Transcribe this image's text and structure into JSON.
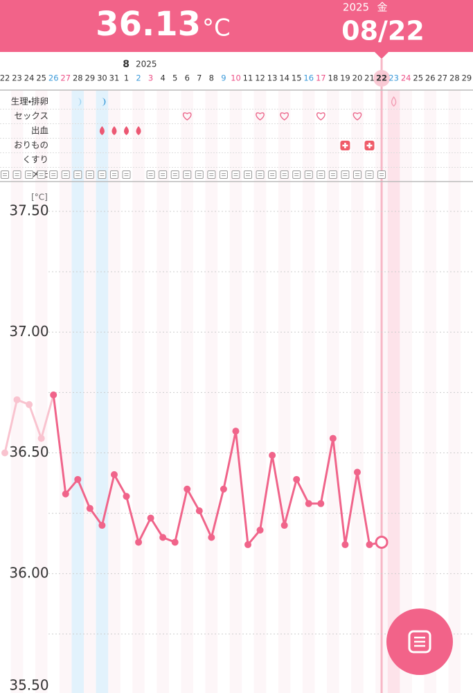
{
  "header": {
    "temperature": "36.13",
    "unit": "°C",
    "year": "2025",
    "weekday": "金",
    "date": "08/22"
  },
  "calendar": {
    "month": "8",
    "year": "2025",
    "days": [
      "22",
      "23",
      "24",
      "25",
      "26",
      "27",
      "28",
      "29",
      "30",
      "31",
      "1",
      "2",
      "3",
      "4",
      "5",
      "6",
      "7",
      "8",
      "9",
      "10",
      "11",
      "12",
      "13",
      "14",
      "15",
      "16",
      "17",
      "18",
      "19",
      "20",
      "21",
      "22",
      "23",
      "24",
      "25",
      "26",
      "27",
      "28",
      "29"
    ]
  },
  "rows": [
    "生理・排卵",
    "セックス",
    "出血",
    "おりもの",
    "くすり",
    "メモ"
  ],
  "chart_data": {
    "type": "line",
    "unit_label": "[°C]",
    "ylim": [
      35.5,
      37.5
    ],
    "yticks": [
      {
        "value": 35.5,
        "label": "35.50"
      },
      {
        "value": 36,
        "label": "36.00"
      },
      {
        "value": 36.5,
        "label": "36.50"
      },
      {
        "value": 37,
        "label": "37.00"
      },
      {
        "value": 37.5,
        "label": "37.50"
      }
    ],
    "minor_yticks": [
      35.75,
      36.25,
      36.75,
      37.25
    ],
    "grid": true,
    "series": [
      {
        "color": "#f9c3cf",
        "values": [
          36.5,
          36.72,
          36.7,
          36.56,
          null,
          null,
          null,
          null,
          null,
          null,
          null,
          null,
          null,
          null,
          null,
          null,
          null,
          null,
          null,
          null,
          null,
          null,
          null,
          null,
          null,
          null,
          null,
          null,
          null,
          null,
          null,
          null,
          null,
          null,
          null,
          null,
          null,
          null,
          null
        ]
      },
      {
        "color": "#f0648a",
        "values": [
          null,
          null,
          null,
          null,
          36.74,
          36.33,
          36.39,
          36.27,
          36.2,
          36.41,
          36.32,
          36.13,
          36.23,
          36.15,
          36.13,
          36.35,
          36.26,
          36.15,
          36.35,
          36.59,
          36.12,
          36.18,
          36.49,
          36.2,
          36.39,
          36.29,
          36.29,
          36.56,
          36.12,
          36.42,
          36.12,
          36.13,
          null,
          null,
          null,
          null,
          null,
          null,
          null
        ]
      }
    ]
  }
}
